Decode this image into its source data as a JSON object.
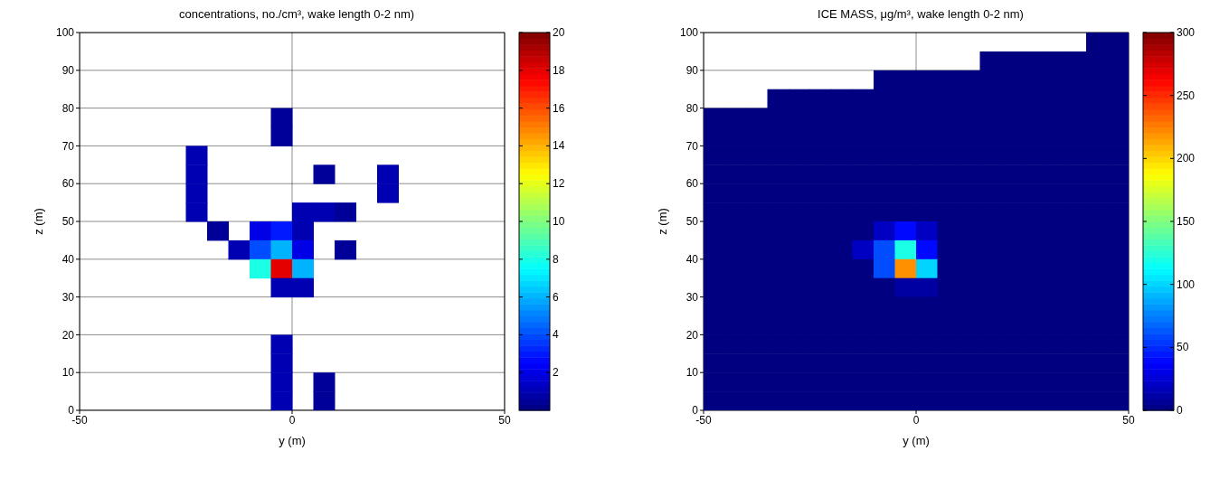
{
  "chart_data": [
    {
      "type": "scatter",
      "title": "concentrations, no./cm³, wake length 0-2 nm)",
      "xlabel": "y (m)",
      "ylabel": "z (m)",
      "xlim": [
        -50,
        50
      ],
      "xticks": [
        -50,
        0,
        50
      ],
      "ylim": [
        0,
        100
      ],
      "yticks": [
        0,
        10,
        20,
        30,
        40,
        50,
        60,
        70,
        80,
        90,
        100
      ],
      "grid": true,
      "marker": "square",
      "clim": [
        0,
        20
      ],
      "cticks": [
        2,
        4,
        6,
        8,
        10,
        12,
        14,
        16,
        18,
        20
      ],
      "x": [
        -2.5,
        -2.5,
        -22.5,
        -22.5,
        7.5,
        22.5,
        -22.5,
        22.5,
        -22.5,
        2.5,
        7.5,
        12.5,
        -17.5,
        -7.5,
        -2.5,
        2.5,
        -12.5,
        -7.5,
        -2.5,
        2.5,
        12.5,
        -7.5,
        -2.5,
        2.5,
        -2.5,
        2.5,
        -2.5,
        -2.5,
        -2.5,
        7.5,
        -2.5,
        7.5
      ],
      "values": [
        77.5,
        72.5,
        67.5,
        62.5,
        62.5,
        62.5,
        57.5,
        57.5,
        52.5,
        52.5,
        52.5,
        52.5,
        47.5,
        47.5,
        47.5,
        47.5,
        42.5,
        42.5,
        42.5,
        42.5,
        42.5,
        37.5,
        37.5,
        37.5,
        32.5,
        32.5,
        17.5,
        12.5,
        7.5,
        7.5,
        2.5,
        2.5
      ],
      "cvalues": [
        0.5,
        0.5,
        1,
        1,
        0.5,
        1,
        1,
        1,
        1,
        1,
        1,
        0.5,
        0.5,
        2,
        3,
        1,
        1,
        4,
        6,
        2,
        0.5,
        8,
        18,
        6,
        1,
        1,
        1,
        1,
        1,
        0.5,
        1,
        0.5
      ]
    },
    {
      "type": "scatter",
      "title": "ICE MASS, μg/m³, wake length 0-2 nm)",
      "xlabel": "y (m)",
      "ylabel": "z (m)",
      "xlim": [
        -50,
        50
      ],
      "xticks": [
        -50,
        0,
        50
      ],
      "ylim": [
        0,
        100
      ],
      "yticks": [
        0,
        10,
        20,
        30,
        40,
        50,
        60,
        70,
        80,
        90,
        100
      ],
      "grid": true,
      "marker": "square",
      "clim": [
        0,
        300
      ],
      "cticks": [
        0,
        50,
        100,
        150,
        200,
        250,
        300
      ],
      "x": [
        42.5,
        47.5,
        17.5,
        22.5,
        27.5,
        32.5,
        37.5,
        42.5,
        47.5,
        -7.5,
        -2.5,
        2.5,
        7.5,
        12.5,
        17.5,
        22.5,
        27.5,
        32.5,
        37.5,
        42.5,
        47.5,
        -32.5,
        -27.5,
        -22.5,
        -17.5,
        -12.5,
        -7.5,
        -2.5,
        2.5,
        7.5,
        12.5,
        17.5,
        22.5,
        27.5,
        32.5,
        37.5,
        42.5,
        47.5,
        -47.5,
        -42.5,
        -37.5,
        -32.5,
        -27.5,
        -22.5,
        -17.5,
        -12.5,
        -7.5,
        -2.5,
        2.5,
        7.5,
        12.5,
        17.5,
        22.5,
        27.5,
        32.5,
        37.5,
        42.5,
        47.5,
        -47.5,
        -42.5,
        -37.5,
        -32.5,
        -27.5,
        -22.5,
        -17.5,
        -12.5,
        -7.5,
        -2.5,
        2.5,
        7.5,
        12.5,
        17.5,
        22.5,
        27.5,
        32.5,
        37.5,
        42.5,
        47.5,
        -47.5,
        -42.5,
        -37.5,
        -32.5,
        -27.5,
        -22.5,
        -17.5,
        -12.5,
        -7.5,
        -2.5,
        2.5,
        7.5,
        12.5,
        17.5,
        22.5,
        27.5,
        32.5,
        37.5,
        42.5,
        47.5,
        -47.5,
        -42.5,
        -37.5,
        -32.5,
        -27.5,
        -22.5,
        -17.5,
        -12.5,
        -7.5,
        -2.5,
        2.5,
        7.5,
        12.5,
        17.5,
        22.5,
        27.5,
        32.5,
        37.5,
        42.5,
        47.5,
        -47.5,
        -42.5,
        -37.5,
        -32.5,
        -27.5,
        -22.5,
        -17.5,
        -12.5,
        -7.5,
        -2.5,
        2.5,
        7.5,
        12.5,
        17.5,
        22.5,
        27.5,
        32.5,
        37.5,
        42.5,
        47.5,
        -47.5,
        -42.5,
        -37.5,
        -32.5,
        -27.5,
        -22.5,
        -17.5,
        -12.5,
        -7.5,
        -2.5,
        2.5,
        7.5,
        12.5,
        17.5,
        22.5,
        27.5,
        32.5,
        37.5,
        42.5,
        47.5,
        -47.5,
        -42.5,
        -37.5,
        -32.5,
        -27.5,
        -22.5,
        -17.5,
        -12.5,
        -7.5,
        -2.5,
        2.5,
        7.5,
        12.5,
        17.5,
        22.5,
        27.5,
        32.5,
        37.5,
        42.5,
        47.5,
        -47.5,
        -42.5,
        -37.5,
        -32.5,
        -27.5,
        -22.5,
        -17.5,
        -12.5,
        -7.5,
        -2.5,
        2.5,
        7.5,
        12.5,
        17.5,
        22.5,
        27.5,
        32.5,
        37.5,
        42.5,
        47.5,
        -47.5,
        -42.5,
        -37.5,
        -32.5,
        -27.5,
        -22.5,
        -17.5,
        -12.5,
        -7.5,
        -2.5,
        2.5,
        7.5,
        12.5,
        17.5,
        22.5,
        27.5,
        32.5,
        37.5,
        42.5,
        47.5,
        -47.5,
        -42.5,
        -37.5,
        -32.5,
        -27.5,
        -22.5,
        -17.5,
        -12.5,
        -7.5,
        -2.5,
        2.5,
        7.5,
        12.5,
        17.5,
        22.5,
        27.5,
        32.5,
        37.5,
        42.5,
        47.5,
        -47.5,
        -42.5,
        -37.5,
        -32.5,
        -27.5,
        -22.5,
        -17.5,
        -12.5,
        -7.5,
        -2.5,
        2.5,
        7.5,
        12.5,
        17.5,
        22.5,
        27.5,
        32.5,
        37.5,
        42.5,
        47.5,
        -47.5,
        -42.5,
        -37.5,
        -32.5,
        -27.5,
        -22.5,
        -17.5,
        -12.5,
        -7.5,
        -2.5,
        2.5,
        7.5,
        12.5,
        17.5,
        22.5,
        27.5,
        32.5,
        37.5,
        42.5,
        47.5,
        -47.5,
        -42.5,
        -37.5,
        -32.5,
        -27.5,
        -22.5,
        -17.5,
        -12.5,
        -7.5,
        -2.5,
        2.5,
        7.5,
        12.5,
        17.5,
        22.5,
        27.5,
        32.5,
        37.5,
        42.5,
        47.5,
        -47.5,
        -42.5,
        -37.5,
        -32.5,
        -27.5,
        -22.5,
        -17.5,
        -12.5,
        -7.5,
        -2.5,
        2.5,
        7.5,
        12.5,
        17.5,
        22.5,
        27.5,
        32.5,
        37.5,
        42.5,
        47.5,
        -47.5,
        -42.5,
        -37.5,
        -32.5,
        -27.5,
        -22.5,
        -17.5,
        -12.5,
        -7.5,
        -2.5,
        2.5,
        7.5,
        12.5,
        17.5,
        22.5,
        27.5,
        32.5,
        37.5,
        42.5,
        47.5,
        -47.5,
        -42.5,
        -37.5,
        -32.5,
        -27.5,
        -22.5,
        -17.5,
        -12.5,
        -7.5,
        -2.5,
        2.5,
        7.5,
        12.5,
        17.5,
        22.5,
        27.5,
        32.5,
        37.5,
        42.5,
        47.5
      ],
      "values": [
        97.5,
        97.5,
        92.5,
        92.5,
        92.5,
        92.5,
        92.5,
        92.5,
        92.5,
        87.5,
        87.5,
        87.5,
        87.5,
        87.5,
        87.5,
        87.5,
        87.5,
        87.5,
        87.5,
        87.5,
        87.5,
        82.5,
        82.5,
        82.5,
        82.5,
        82.5,
        82.5,
        82.5,
        82.5,
        82.5,
        82.5,
        82.5,
        82.5,
        82.5,
        82.5,
        82.5,
        82.5,
        82.5,
        77.5,
        77.5,
        77.5,
        77.5,
        77.5,
        77.5,
        77.5,
        77.5,
        77.5,
        77.5,
        77.5,
        77.5,
        77.5,
        77.5,
        77.5,
        77.5,
        77.5,
        77.5,
        77.5,
        77.5,
        72.5,
        72.5,
        72.5,
        72.5,
        72.5,
        72.5,
        72.5,
        72.5,
        72.5,
        72.5,
        72.5,
        72.5,
        72.5,
        72.5,
        72.5,
        72.5,
        72.5,
        72.5,
        72.5,
        72.5,
        67.5,
        67.5,
        67.5,
        67.5,
        67.5,
        67.5,
        67.5,
        67.5,
        67.5,
        67.5,
        67.5,
        67.5,
        67.5,
        67.5,
        67.5,
        67.5,
        67.5,
        67.5,
        67.5,
        67.5,
        62.5,
        62.5,
        62.5,
        62.5,
        62.5,
        62.5,
        62.5,
        62.5,
        62.5,
        62.5,
        62.5,
        62.5,
        62.5,
        62.5,
        62.5,
        62.5,
        62.5,
        62.5,
        62.5,
        62.5,
        57.5,
        57.5,
        57.5,
        57.5,
        57.5,
        57.5,
        57.5,
        57.5,
        57.5,
        57.5,
        57.5,
        57.5,
        57.5,
        57.5,
        57.5,
        57.5,
        57.5,
        57.5,
        57.5,
        57.5,
        52.5,
        52.5,
        52.5,
        52.5,
        52.5,
        52.5,
        52.5,
        52.5,
        52.5,
        52.5,
        52.5,
        52.5,
        52.5,
        52.5,
        52.5,
        52.5,
        52.5,
        52.5,
        52.5,
        52.5,
        47.5,
        47.5,
        47.5,
        47.5,
        47.5,
        47.5,
        47.5,
        47.5,
        47.5,
        47.5,
        47.5,
        47.5,
        47.5,
        47.5,
        47.5,
        47.5,
        47.5,
        47.5,
        47.5,
        47.5,
        42.5,
        42.5,
        42.5,
        42.5,
        42.5,
        42.5,
        42.5,
        42.5,
        42.5,
        42.5,
        42.5,
        42.5,
        42.5,
        42.5,
        42.5,
        42.5,
        42.5,
        42.5,
        42.5,
        42.5,
        37.5,
        37.5,
        37.5,
        37.5,
        37.5,
        37.5,
        37.5,
        37.5,
        37.5,
        37.5,
        37.5,
        37.5,
        37.5,
        37.5,
        37.5,
        37.5,
        37.5,
        37.5,
        37.5,
        37.5,
        32.5,
        32.5,
        32.5,
        32.5,
        32.5,
        32.5,
        32.5,
        32.5,
        32.5,
        32.5,
        32.5,
        32.5,
        32.5,
        32.5,
        32.5,
        32.5,
        32.5,
        32.5,
        32.5,
        32.5,
        27.5,
        27.5,
        27.5,
        27.5,
        27.5,
        27.5,
        27.5,
        27.5,
        27.5,
        27.5,
        27.5,
        27.5,
        27.5,
        27.5,
        27.5,
        27.5,
        27.5,
        27.5,
        27.5,
        27.5,
        22.5,
        22.5,
        22.5,
        22.5,
        22.5,
        22.5,
        22.5,
        22.5,
        22.5,
        22.5,
        22.5,
        22.5,
        22.5,
        22.5,
        22.5,
        22.5,
        22.5,
        22.5,
        22.5,
        22.5,
        17.5,
        17.5,
        17.5,
        17.5,
        17.5,
        17.5,
        17.5,
        17.5,
        17.5,
        17.5,
        17.5,
        17.5,
        17.5,
        17.5,
        17.5,
        17.5,
        17.5,
        17.5,
        17.5,
        17.5,
        12.5,
        12.5,
        12.5,
        12.5,
        12.5,
        12.5,
        12.5,
        12.5,
        12.5,
        12.5,
        12.5,
        12.5,
        12.5,
        12.5,
        12.5,
        12.5,
        12.5,
        12.5,
        12.5,
        12.5,
        7.5,
        7.5,
        7.5,
        7.5,
        7.5,
        7.5,
        7.5,
        7.5,
        7.5,
        7.5,
        7.5,
        7.5,
        7.5,
        7.5,
        7.5,
        7.5,
        7.5,
        7.5,
        7.5,
        7.5,
        2.5,
        2.5,
        2.5,
        2.5,
        2.5,
        2.5,
        2.5,
        2.5,
        2.5,
        2.5,
        2.5,
        2.5,
        2.5,
        2.5,
        2.5,
        2.5,
        2.5,
        2.5,
        2.5,
        2.5
      ],
      "cvalues": [
        0,
        0,
        0,
        0,
        0,
        0,
        0,
        0,
        0,
        0,
        0,
        0,
        0,
        0,
        0,
        0,
        0,
        0,
        0,
        0,
        0,
        0,
        0,
        0,
        0,
        0,
        0,
        0,
        0,
        0,
        0,
        0,
        0,
        0,
        0,
        0,
        0,
        0,
        0,
        0,
        0,
        0,
        0,
        0,
        0,
        0,
        0,
        0,
        0,
        0,
        0,
        0,
        0,
        0,
        0,
        0,
        0,
        0,
        0,
        0,
        0,
        0,
        0,
        0,
        0,
        0,
        0,
        0,
        0,
        0,
        0,
        0,
        0,
        0,
        0,
        0,
        0,
        0,
        0,
        0,
        0,
        0,
        0,
        0,
        0,
        0,
        0,
        0,
        0,
        0,
        0,
        0,
        0,
        0,
        0,
        0,
        0,
        0,
        0,
        0,
        0,
        0,
        0,
        0,
        0,
        0,
        0,
        0,
        0,
        0,
        0,
        0,
        0,
        0,
        0,
        0,
        0,
        0,
        0,
        0,
        0,
        0,
        0,
        0,
        0,
        0,
        0,
        0,
        0,
        0,
        0,
        0,
        0,
        0,
        0,
        0,
        0,
        0,
        0,
        0,
        0,
        0,
        0,
        0,
        0,
        0,
        0,
        0,
        0,
        0,
        0,
        0,
        0,
        0,
        0,
        0,
        0,
        0,
        0,
        0,
        0,
        0,
        0,
        0,
        0,
        0,
        20,
        40,
        20,
        0,
        0,
        0,
        0,
        0,
        0,
        0,
        0,
        0,
        0,
        0,
        0,
        0,
        0,
        0,
        0,
        20,
        60,
        120,
        40,
        0,
        0,
        0,
        0,
        0,
        0,
        0,
        0,
        0,
        0,
        0,
        0,
        0,
        0,
        0,
        0,
        0,
        60,
        220,
        100,
        0,
        0,
        0,
        0,
        0,
        0,
        0,
        0,
        0,
        0,
        0,
        0,
        0,
        0,
        0,
        0,
        0,
        0,
        10,
        10,
        0,
        0,
        0,
        0,
        0,
        0,
        0,
        0,
        0,
        0,
        0,
        0,
        0,
        0,
        0,
        0,
        0,
        0,
        0,
        0,
        0,
        0,
        0,
        0,
        0,
        0,
        0,
        0,
        0,
        0,
        0,
        0,
        0,
        0,
        0,
        0,
        0,
        0,
        0,
        0,
        0,
        0,
        0,
        0,
        0,
        0,
        0,
        0,
        0,
        0,
        0,
        0,
        0,
        0,
        0,
        0,
        0,
        0,
        0,
        0,
        0,
        0,
        0,
        0,
        0,
        0,
        0,
        0,
        0,
        0,
        0,
        0,
        0,
        0,
        0,
        0,
        0,
        0,
        0,
        0,
        0,
        0,
        0,
        0,
        0,
        0,
        0,
        0,
        0,
        0,
        0,
        0,
        0,
        0,
        0,
        0,
        0,
        0,
        0,
        0,
        0,
        0,
        0,
        0,
        0,
        0,
        0,
        0,
        0,
        0,
        0,
        0,
        0,
        0,
        0,
        0,
        0,
        0,
        0,
        0,
        0,
        0,
        0,
        0,
        0,
        0,
        0,
        0,
        0
      ]
    }
  ]
}
